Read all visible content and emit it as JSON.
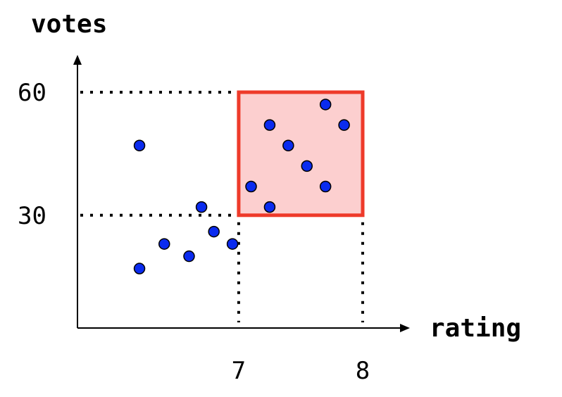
{
  "chart_data": {
    "type": "scatter",
    "xlabel": "rating",
    "ylabel": "votes",
    "x_ticks": [
      {
        "value": 7,
        "label": "7"
      },
      {
        "value": 8,
        "label": "8"
      }
    ],
    "y_ticks": [
      {
        "value": 30,
        "label": "30"
      },
      {
        "value": 60,
        "label": "60"
      }
    ],
    "xlim": [
      5.7,
      8.0
    ],
    "ylim": [
      2.5,
      60.0
    ],
    "grid": false,
    "legend": "none",
    "points": [
      {
        "x": 6.2,
        "y": 47
      },
      {
        "x": 6.2,
        "y": 17
      },
      {
        "x": 6.4,
        "y": 23
      },
      {
        "x": 6.6,
        "y": 20
      },
      {
        "x": 6.7,
        "y": 32
      },
      {
        "x": 6.8,
        "y": 26
      },
      {
        "x": 6.95,
        "y": 23
      },
      {
        "x": 7.1,
        "y": 37
      },
      {
        "x": 7.25,
        "y": 32
      },
      {
        "x": 7.25,
        "y": 52
      },
      {
        "x": 7.4,
        "y": 47
      },
      {
        "x": 7.55,
        "y": 42
      },
      {
        "x": 7.7,
        "y": 37
      },
      {
        "x": 7.7,
        "y": 57
      },
      {
        "x": 7.85,
        "y": 52
      }
    ],
    "highlight_region": {
      "x": [
        7,
        8
      ],
      "y": [
        30,
        60
      ]
    },
    "guide_lines": true,
    "colors": {
      "point_fill": "#0a2bef",
      "point_stroke": "#000000",
      "region_fill": "#fccfcf",
      "region_stroke": "#ee3a2a",
      "axis": "#000000",
      "guide": "#000000"
    }
  }
}
